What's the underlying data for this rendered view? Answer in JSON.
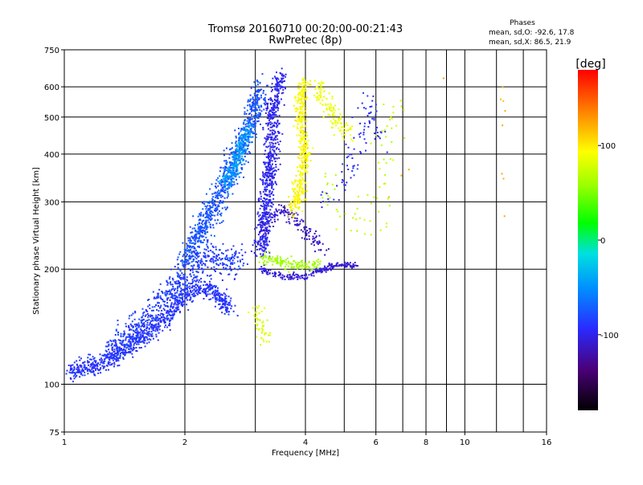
{
  "chart_data": {
    "type": "scatter",
    "title": "Tromsø 20160710 00:20:00-00:21:43",
    "subtitle": "RwPretec (8p)",
    "xlabel": "Frequency [MHz]",
    "ylabel": "Stationary phase Virtual Height [km]",
    "x_scale": "log",
    "y_scale": "log",
    "xlim": [
      1,
      16
    ],
    "ylim": [
      75,
      750
    ],
    "x_ticks": [
      1,
      2,
      4,
      6,
      8,
      10,
      16
    ],
    "x_tick_labels": [
      "1",
      "2",
      "4",
      "6",
      "8",
      "10",
      "16"
    ],
    "x_grid": [
      1,
      2,
      3,
      4,
      5,
      6,
      7,
      8,
      9,
      10,
      12,
      14,
      16
    ],
    "y_ticks": [
      75,
      100,
      200,
      300,
      400,
      500,
      600,
      750
    ],
    "y_tick_labels": [
      "75",
      "100",
      "200",
      "300",
      "400",
      "500",
      "600",
      "750"
    ],
    "y_grid": [
      100,
      200,
      300,
      400,
      500,
      600
    ],
    "grid": true,
    "stats": {
      "title": "Phases",
      "lines": [
        "mean, sd,O: -92.6, 17.8",
        "mean, sd,X:  86.5, 21.9"
      ]
    },
    "colorbar": {
      "label": "[deg]",
      "range": [
        -180,
        180
      ],
      "ticks": [
        100,
        0,
        -100
      ],
      "tick_labels": [
        "100",
        "0",
        "-100"
      ]
    },
    "clusters": [
      {
        "name": "o-lower-trace",
        "phase": -95,
        "count": 900,
        "points": [
          [
            1.02,
            108
          ],
          [
            1.2,
            112
          ],
          [
            1.4,
            122
          ],
          [
            1.6,
            135
          ],
          [
            1.8,
            150
          ],
          [
            2.0,
            170
          ],
          [
            2.2,
            180
          ],
          [
            2.4,
            172
          ],
          [
            2.6,
            158
          ]
        ],
        "spread": 0.055
      },
      {
        "name": "o-lower-band",
        "phase": -90,
        "count": 600,
        "points": [
          [
            1.3,
            120
          ],
          [
            1.6,
            148
          ],
          [
            1.9,
            178
          ],
          [
            2.1,
            205
          ],
          [
            2.4,
            215
          ],
          [
            2.8,
            205
          ]
        ],
        "spread": 0.09
      },
      {
        "name": "o-f-rise",
        "phase": -80,
        "count": 900,
        "points": [
          [
            2.0,
            210
          ],
          [
            2.2,
            250
          ],
          [
            2.4,
            300
          ],
          [
            2.6,
            360
          ],
          [
            2.8,
            430
          ],
          [
            3.0,
            520
          ],
          [
            3.1,
            600
          ]
        ],
        "spread": 0.08
      },
      {
        "name": "o-f-column",
        "phase": -105,
        "count": 700,
        "points": [
          [
            3.1,
            220
          ],
          [
            3.2,
            300
          ],
          [
            3.3,
            400
          ],
          [
            3.3,
            500
          ],
          [
            3.4,
            600
          ],
          [
            3.5,
            640
          ]
        ],
        "spread": 0.06
      },
      {
        "name": "o-f-cyan",
        "phase": -45,
        "count": 250,
        "points": [
          [
            2.5,
            330
          ],
          [
            2.7,
            380
          ],
          [
            2.8,
            430
          ],
          [
            2.9,
            470
          ]
        ],
        "spread": 0.05
      },
      {
        "name": "o-bottom-trace",
        "phase": -115,
        "count": 220,
        "points": [
          [
            3.1,
            200
          ],
          [
            3.5,
            192
          ],
          [
            3.9,
            190
          ],
          [
            4.3,
            198
          ],
          [
            4.8,
            205
          ],
          [
            5.4,
            205
          ]
        ],
        "spread": 0.02
      },
      {
        "name": "o-mid-purple",
        "phase": -120,
        "count": 160,
        "points": [
          [
            3.1,
            250
          ],
          [
            3.3,
            270
          ],
          [
            3.5,
            290
          ],
          [
            4.2,
            240
          ],
          [
            4.4,
            225
          ]
        ],
        "spread": 0.05
      },
      {
        "name": "x-main",
        "phase": 95,
        "count": 420,
        "points": [
          [
            3.7,
            280
          ],
          [
            3.9,
            330
          ],
          [
            4.0,
            400
          ],
          [
            3.9,
            480
          ],
          [
            3.9,
            560
          ],
          [
            4.0,
            630
          ]
        ],
        "spread": 0.05
      },
      {
        "name": "x-upper-right",
        "phase": 85,
        "count": 120,
        "points": [
          [
            4.3,
            600
          ],
          [
            4.5,
            540
          ],
          [
            4.8,
            490
          ],
          [
            5.2,
            450
          ]
        ],
        "spread": 0.06
      },
      {
        "name": "x-low-green",
        "phase": 45,
        "count": 140,
        "points": [
          [
            3.1,
            215
          ],
          [
            3.4,
            210
          ],
          [
            3.7,
            205
          ],
          [
            4.1,
            205
          ],
          [
            4.4,
            208
          ]
        ],
        "spread": 0.04
      },
      {
        "name": "x-low-cluster",
        "phase": 75,
        "count": 50,
        "points": [
          [
            3.0,
            160
          ],
          [
            3.1,
            140
          ],
          [
            3.2,
            130
          ]
        ],
        "spread": 0.05
      },
      {
        "name": "x-scatter",
        "phase": 60,
        "count": 70,
        "points": [
          [
            4.5,
            330
          ],
          [
            5.0,
            260
          ],
          [
            5.5,
            300
          ],
          [
            6.0,
            250
          ],
          [
            6.5,
            500
          ],
          [
            7.0,
            570
          ]
        ],
        "spread": 0.1
      },
      {
        "name": "o-right-scatter",
        "phase": -100,
        "count": 90,
        "points": [
          [
            4.3,
            300
          ],
          [
            5.0,
            330
          ],
          [
            5.6,
            470
          ],
          [
            5.8,
            550
          ],
          [
            6.2,
            420
          ]
        ],
        "spread": 0.08
      },
      {
        "name": "sparse-far",
        "phase": 120,
        "count": 12,
        "points": [
          [
            6.5,
            300
          ],
          [
            8.0,
            460
          ],
          [
            9.0,
            630
          ],
          [
            12.5,
            620
          ],
          [
            12.5,
            450
          ],
          [
            12.5,
            240
          ]
        ],
        "spread": 0.04
      }
    ]
  }
}
